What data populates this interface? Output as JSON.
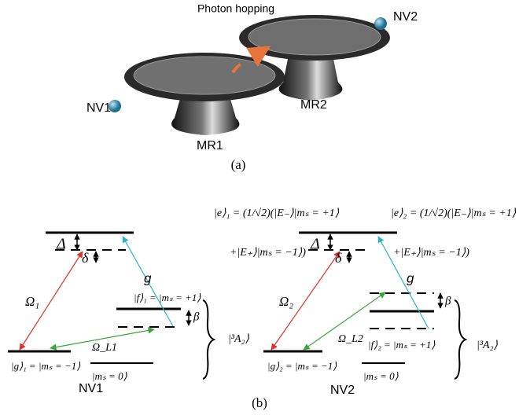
{
  "panel_a": {
    "label": "(a)",
    "hopping": "Photon hopping",
    "nv1": "NV1",
    "nv2": "NV2",
    "mr1": "MR1",
    "mr2": "MR2"
  },
  "panel_b": {
    "label": "(b)",
    "left": {
      "e_line1": "|e⟩₁ = (1/√2)(|E₋⟩|mₛ = +1⟩",
      "e_line2": "+|E₊⟩|mₛ = −1⟩)",
      "delta_big": "Δ",
      "delta_small": "δ",
      "coupling": "g",
      "omega": "Ω₁",
      "f_label": "|f⟩₁ = |mₛ = +1⟩",
      "beta": "β",
      "a2": "|³A₂⟩",
      "omega_l": "Ω_L1",
      "g_label": "|g⟩₁ = |mₛ = −1⟩",
      "m0_label": "|mₛ = 0⟩",
      "name": "NV1"
    },
    "right": {
      "e_line1": "|e⟩₂ = (1/√2)(|E₋⟩|mₛ = +1⟩",
      "e_line2": "+|E₊⟩|mₛ = −1⟩)",
      "delta_big": "Δ",
      "delta_small": "δ",
      "coupling": "g",
      "omega": "Ω₂",
      "f_label": "|f⟩₂ = |mₛ = +1⟩",
      "beta": "β",
      "a2": "|³A₂⟩",
      "omega_l": "Ω_L2",
      "g_label": "|g⟩₂ = |mₛ = −1⟩",
      "m0_label": "|mₛ = 0⟩",
      "name": "NV2"
    }
  }
}
